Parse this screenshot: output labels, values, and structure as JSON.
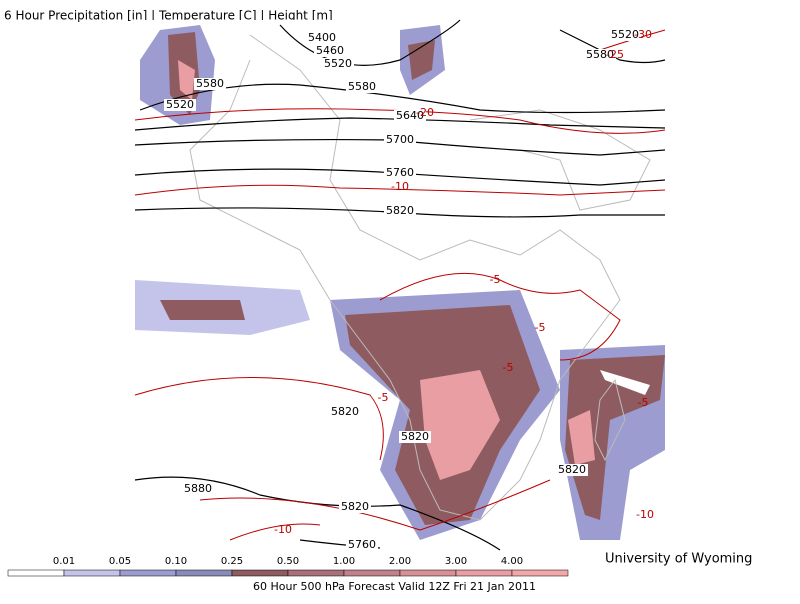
{
  "title": "6 Hour Precipitation [in] | Temperature [C] | Height [m]",
  "height_labels": [
    "5400",
    "5460",
    "5520",
    "5580",
    "5520",
    "5580",
    "5640",
    "5700",
    "5760",
    "5820",
    "5820",
    "5820",
    "5880",
    "5820",
    "5760",
    "5520",
    "5580",
    "5820"
  ],
  "temperature_labels": [
    "-30",
    "-25",
    "-20",
    "-10",
    "-5",
    "-5",
    "-5",
    "-5",
    "-5",
    "-10",
    "-10"
  ],
  "legend": {
    "labels": [
      "0.01",
      "0.05",
      "0.10",
      "0.25",
      "0.50",
      "1.00",
      "2.00",
      "3.00",
      "4.00"
    ],
    "colors": [
      "#ffffff",
      "#c4c4ea",
      "#9c9cd0",
      "#8a8ab8",
      "#8e5c60",
      "#a87078",
      "#c0828a",
      "#d69096",
      "#e89ea2",
      "#f2a8a8"
    ]
  },
  "credit": "University of Wyoming",
  "footer": "60 Hour 500 hPa Forecast Valid 12Z Fri 21 Jan 2011"
}
